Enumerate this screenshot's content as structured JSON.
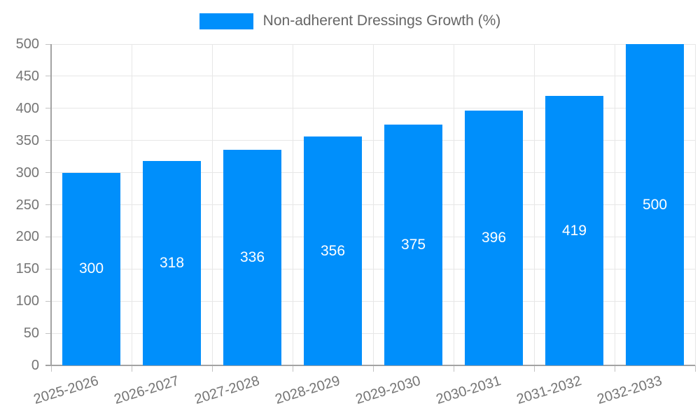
{
  "legend": {
    "label": "Non-adherent Dressings Growth (%)",
    "swatch_color": "#008FFB"
  },
  "chart_data": {
    "type": "bar",
    "title": "",
    "xlabel": "",
    "ylabel": "",
    "categories": [
      "2025-2026",
      "2026-2027",
      "2027-2028",
      "2028-2029",
      "2029-2030",
      "2030-2031",
      "2031-2032",
      "2032-2033"
    ],
    "series": [
      {
        "name": "Non-adherent Dressings Growth (%)",
        "values": [
          300,
          318,
          336,
          356,
          375,
          396,
          419,
          500
        ]
      }
    ],
    "value_labels_shown": true,
    "ylim": [
      0,
      500
    ],
    "ytick_step": 50,
    "grid": true,
    "legend_position": "top",
    "colors": {
      "bar": "#008FFB",
      "value_label": "#ffffff",
      "axis_label": "#757575",
      "legend_text": "#666666",
      "gridline": "#e7e7e7",
      "axis_line": "#a3a3a3",
      "tick": "#c2c2c2",
      "background": "#ffffff"
    }
  }
}
